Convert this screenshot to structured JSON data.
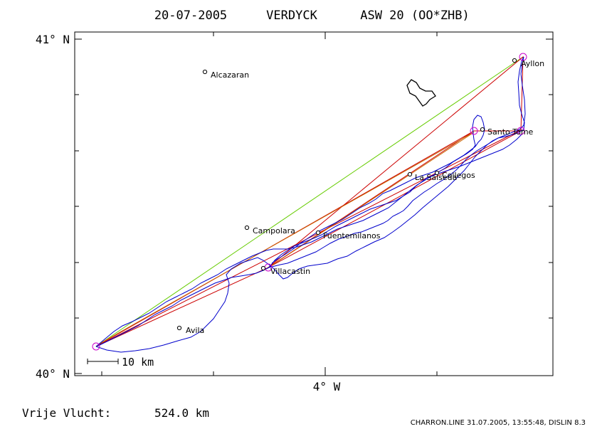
{
  "header": {
    "date": "20-07-2005",
    "pilot": "VERDYCK",
    "glider": "ASW 20 (OO*ZHB)"
  },
  "axes": {
    "lat_top": "41° N",
    "lat_bottom": "40° N",
    "lon_mid": "4° W"
  },
  "scale_bar": {
    "label": "10 km"
  },
  "places": [
    {
      "name": "Alcazaran"
    },
    {
      "name": "Ayllon"
    },
    {
      "name": "Santo Tome"
    },
    {
      "name": "La Salseda"
    },
    {
      "name": "Collegos"
    },
    {
      "name": "Campolara"
    },
    {
      "name": "Fuentemilanos"
    },
    {
      "name": "Villacastin"
    },
    {
      "name": "Avila"
    }
  ],
  "footer": {
    "flight_label": "Vrije Vlucht:",
    "distance": "524.0 km",
    "credit": "CHARRON.LINE 31.07.2005, 13:55:48, DISLIN 8.3"
  },
  "colors": {
    "frame": "#000000",
    "track": "#0000cc",
    "turnpoint": "#cc00cc",
    "task_line": "#cc0000",
    "alt_line": "#cc6600",
    "free_flight_line": "#66cc00"
  }
}
